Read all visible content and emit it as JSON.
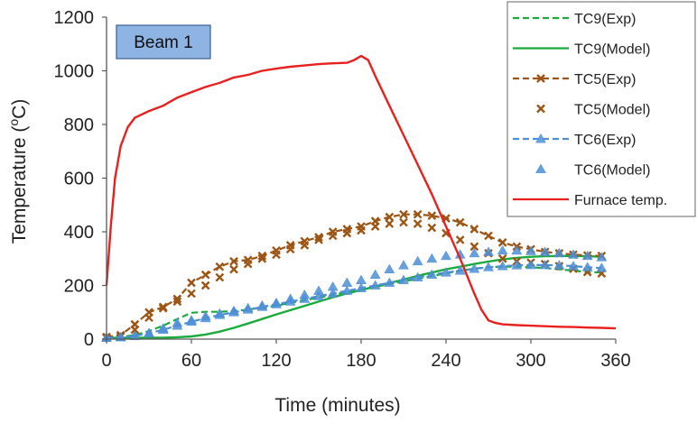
{
  "chart_data": {
    "type": "line",
    "annotation": "Beam 1",
    "xlabel": "Time (minutes)",
    "ylabel_parts": [
      "Temperature (",
      "o",
      "C)"
    ],
    "xlim": [
      0,
      360
    ],
    "ylim": [
      0,
      1200
    ],
    "xticks": [
      0,
      60,
      120,
      180,
      240,
      300,
      360
    ],
    "yticks": [
      0,
      200,
      400,
      600,
      800,
      1000,
      1200
    ],
    "grid": false,
    "legend_position": "top-right",
    "series": [
      {
        "name": "TC9(Exp)",
        "style": "dashed-line",
        "marker": "none",
        "color": "#1aab3c",
        "x": [
          0,
          10,
          20,
          30,
          40,
          50,
          60,
          70,
          80,
          90,
          100,
          110,
          120,
          130,
          140,
          150,
          160,
          170,
          180,
          190,
          200,
          210,
          220,
          230,
          240,
          250,
          260,
          270,
          280,
          290,
          300,
          310,
          320,
          330,
          340,
          350
        ],
        "y": [
          5,
          8,
          15,
          30,
          50,
          75,
          98,
          102,
          102,
          105,
          110,
          118,
          125,
          135,
          145,
          155,
          165,
          175,
          185,
          195,
          205,
          215,
          225,
          235,
          245,
          255,
          263,
          268,
          270,
          270,
          268,
          265,
          260,
          255,
          250,
          248
        ]
      },
      {
        "name": "TC9(Model)",
        "style": "solid-line",
        "marker": "none",
        "color": "#1aab3c",
        "x": [
          0,
          10,
          20,
          30,
          40,
          50,
          60,
          70,
          80,
          90,
          100,
          110,
          120,
          130,
          140,
          150,
          160,
          170,
          180,
          190,
          200,
          210,
          220,
          230,
          240,
          250,
          260,
          270,
          280,
          290,
          300,
          310,
          320,
          330,
          340,
          350
        ],
        "y": [
          5,
          5,
          5,
          5,
          5,
          7,
          10,
          17,
          28,
          42,
          58,
          75,
          92,
          108,
          124,
          140,
          156,
          170,
          183,
          196,
          209,
          222,
          236,
          248,
          260,
          270,
          280,
          289,
          297,
          303,
          307,
          309,
          310,
          310,
          309,
          307
        ]
      },
      {
        "name": "TC5(Exp)",
        "style": "dashed-line",
        "marker": "x",
        "color": "#9c5514",
        "x": [
          0,
          10,
          20,
          30,
          40,
          50,
          60,
          70,
          80,
          90,
          100,
          110,
          120,
          130,
          140,
          150,
          160,
          170,
          180,
          190,
          200,
          210,
          220,
          230,
          240,
          250,
          260,
          270,
          280,
          290,
          300,
          310,
          320,
          330,
          340,
          350
        ],
        "y": [
          8,
          15,
          55,
          100,
          120,
          150,
          210,
          240,
          270,
          290,
          295,
          310,
          330,
          350,
          365,
          380,
          400,
          410,
          420,
          440,
          455,
          465,
          465,
          460,
          450,
          435,
          410,
          385,
          360,
          345,
          335,
          325,
          320,
          315,
          312,
          310
        ]
      },
      {
        "name": "TC5(Model)",
        "style": "markers",
        "marker": "x",
        "color": "#9c5514",
        "x": [
          0,
          10,
          20,
          30,
          40,
          50,
          60,
          70,
          80,
          90,
          100,
          110,
          120,
          130,
          140,
          150,
          160,
          170,
          180,
          190,
          200,
          210,
          220,
          230,
          240,
          250,
          260,
          270,
          280,
          290,
          300,
          310,
          320,
          330,
          340,
          350
        ],
        "y": [
          5,
          10,
          35,
          80,
          115,
          140,
          170,
          200,
          230,
          260,
          280,
          300,
          315,
          335,
          350,
          370,
          385,
          395,
          405,
          420,
          430,
          435,
          430,
          415,
          395,
          370,
          345,
          320,
          300,
          290,
          285,
          280,
          272,
          262,
          250,
          245
        ]
      },
      {
        "name": "TC6(Exp)",
        "style": "dashed-line",
        "marker": "triangle",
        "color": "#4d8fd6",
        "x": [
          0,
          10,
          20,
          30,
          40,
          50,
          60,
          70,
          80,
          90,
          100,
          110,
          120,
          130,
          140,
          150,
          160,
          170,
          180,
          190,
          200,
          210,
          220,
          230,
          240,
          250,
          260,
          270,
          280,
          290,
          300,
          310,
          320,
          330,
          340,
          350
        ],
        "y": [
          5,
          7,
          12,
          22,
          35,
          50,
          65,
          78,
          90,
          100,
          110,
          120,
          130,
          140,
          150,
          160,
          170,
          180,
          190,
          200,
          210,
          220,
          230,
          240,
          248,
          255,
          262,
          268,
          272,
          275,
          276,
          276,
          275,
          272,
          268,
          265
        ]
      },
      {
        "name": "TC6(Model)",
        "style": "markers",
        "marker": "triangle",
        "color": "#4d8fd6",
        "x": [
          0,
          10,
          20,
          30,
          40,
          50,
          60,
          70,
          80,
          90,
          100,
          110,
          120,
          130,
          140,
          150,
          160,
          170,
          180,
          190,
          200,
          210,
          220,
          230,
          240,
          250,
          260,
          270,
          280,
          290,
          300,
          310,
          320,
          330,
          340,
          350
        ],
        "y": [
          5,
          7,
          12,
          22,
          40,
          60,
          70,
          85,
          95,
          105,
          115,
          125,
          135,
          150,
          165,
          180,
          195,
          210,
          220,
          240,
          260,
          275,
          290,
          300,
          310,
          315,
          320,
          325,
          330,
          330,
          328,
          325,
          320,
          315,
          310,
          305
        ]
      },
      {
        "name": "Furnace temp.",
        "style": "solid-line",
        "marker": "none",
        "color": "#e8201e",
        "x": [
          0,
          3,
          6,
          10,
          15,
          20,
          30,
          40,
          50,
          60,
          70,
          80,
          90,
          100,
          110,
          120,
          130,
          140,
          150,
          160,
          170,
          175,
          180,
          185,
          190,
          200,
          210,
          220,
          230,
          240,
          250,
          260,
          265,
          270,
          275,
          280,
          290,
          300,
          310,
          320,
          330,
          340,
          350,
          360
        ],
        "y": [
          200,
          420,
          600,
          720,
          790,
          825,
          850,
          870,
          900,
          920,
          940,
          955,
          975,
          985,
          1000,
          1008,
          1015,
          1020,
          1025,
          1028,
          1030,
          1040,
          1055,
          1040,
          980,
          870,
          760,
          650,
          540,
          420,
          300,
          170,
          110,
          70,
          60,
          55,
          52,
          50,
          48,
          46,
          45,
          43,
          42,
          40
        ]
      }
    ]
  }
}
